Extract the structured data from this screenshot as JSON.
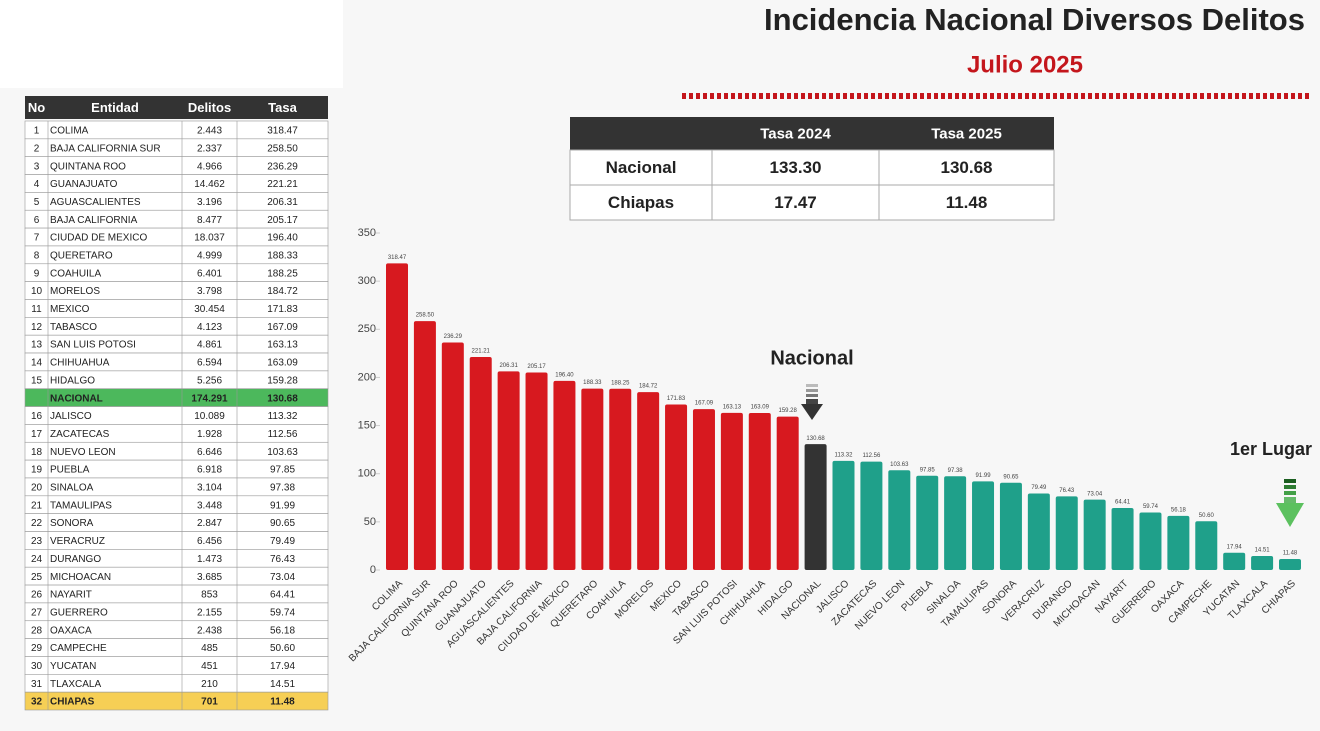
{
  "title": "Incidencia Nacional Diversos Delitos",
  "subtitle": "Julio 2025",
  "table": {
    "header": [
      "No",
      "Entidad",
      "Delitos",
      "Tasa"
    ],
    "rows": [
      {
        "no": "1",
        "entidad": "COLIMA",
        "delitos": "2.443",
        "tasa": "318.47"
      },
      {
        "no": "2",
        "entidad": "BAJA CALIFORNIA SUR",
        "delitos": "2.337",
        "tasa": "258.50"
      },
      {
        "no": "3",
        "entidad": "QUINTANA ROO",
        "delitos": "4.966",
        "tasa": "236.29"
      },
      {
        "no": "4",
        "entidad": "GUANAJUATO",
        "delitos": "14.462",
        "tasa": "221.21"
      },
      {
        "no": "5",
        "entidad": "AGUASCALIENTES",
        "delitos": "3.196",
        "tasa": "206.31"
      },
      {
        "no": "6",
        "entidad": "BAJA CALIFORNIA",
        "delitos": "8.477",
        "tasa": "205.17"
      },
      {
        "no": "7",
        "entidad": "CIUDAD DE MEXICO",
        "delitos": "18.037",
        "tasa": "196.40"
      },
      {
        "no": "8",
        "entidad": "QUERETARO",
        "delitos": "4.999",
        "tasa": "188.33"
      },
      {
        "no": "9",
        "entidad": "COAHUILA",
        "delitos": "6.401",
        "tasa": "188.25"
      },
      {
        "no": "10",
        "entidad": "MORELOS",
        "delitos": "3.798",
        "tasa": "184.72"
      },
      {
        "no": "11",
        "entidad": "MEXICO",
        "delitos": "30.454",
        "tasa": "171.83"
      },
      {
        "no": "12",
        "entidad": "TABASCO",
        "delitos": "4.123",
        "tasa": "167.09"
      },
      {
        "no": "13",
        "entidad": "SAN LUIS POTOSI",
        "delitos": "4.861",
        "tasa": "163.13"
      },
      {
        "no": "14",
        "entidad": "CHIHUAHUA",
        "delitos": "6.594",
        "tasa": "163.09"
      },
      {
        "no": "15",
        "entidad": "HIDALGO",
        "delitos": "5.256",
        "tasa": "159.28"
      },
      {
        "entidad": "NACIONAL",
        "delitos": "174.291",
        "tasa": "130.68",
        "fill": "#4cb85c"
      },
      {
        "no": "16",
        "entidad": "JALISCO",
        "delitos": "10.089",
        "tasa": "113.32"
      },
      {
        "no": "17",
        "entidad": "ZACATECAS",
        "delitos": "1.928",
        "tasa": "112.56"
      },
      {
        "no": "18",
        "entidad": "NUEVO LEON",
        "delitos": "6.646",
        "tasa": "103.63"
      },
      {
        "no": "19",
        "entidad": "PUEBLA",
        "delitos": "6.918",
        "tasa": "97.85"
      },
      {
        "no": "20",
        "entidad": "SINALOA",
        "delitos": "3.104",
        "tasa": "97.38"
      },
      {
        "no": "21",
        "entidad": "TAMAULIPAS",
        "delitos": "3.448",
        "tasa": "91.99"
      },
      {
        "no": "22",
        "entidad": "SONORA",
        "delitos": "2.847",
        "tasa": "90.65"
      },
      {
        "no": "23",
        "entidad": "VERACRUZ",
        "delitos": "6.456",
        "tasa": "79.49"
      },
      {
        "no": "24",
        "entidad": "DURANGO",
        "delitos": "1.473",
        "tasa": "76.43"
      },
      {
        "no": "25",
        "entidad": "MICHOACAN",
        "delitos": "3.685",
        "tasa": "73.04"
      },
      {
        "no": "26",
        "entidad": "NAYARIT",
        "delitos": "853",
        "tasa": "64.41"
      },
      {
        "no": "27",
        "entidad": "GUERRERO",
        "delitos": "2.155",
        "tasa": "59.74"
      },
      {
        "no": "28",
        "entidad": "OAXACA",
        "delitos": "2.438",
        "tasa": "56.18"
      },
      {
        "no": "29",
        "entidad": "CAMPECHE",
        "delitos": "485",
        "tasa": "50.60"
      },
      {
        "no": "30",
        "entidad": "YUCATAN",
        "delitos": "451",
        "tasa": "17.94"
      },
      {
        "no": "31",
        "entidad": "TLAXCALA",
        "delitos": "210",
        "tasa": "14.51"
      },
      {
        "no": "32",
        "entidad": "CHIAPAS",
        "delitos": "701",
        "tasa": "11.48",
        "fill": "#f6cf55"
      }
    ]
  },
  "summary": {
    "header": [
      "Tasa 2024",
      "Tasa 2025"
    ],
    "rows": [
      {
        "label": "Nacional",
        "values": [
          "133.30",
          "130.68"
        ]
      },
      {
        "label": "Chiapas",
        "values": [
          "17.47",
          "11.48"
        ]
      }
    ]
  },
  "chart_data": {
    "type": "bar",
    "categories": [
      "COLIMA",
      "BAJA CALIFORNIA SUR",
      "QUINTANA ROO",
      "GUANAJUATO",
      "AGUASCALIENTES",
      "BAJA CALIFORNIA",
      "CIUDAD DE MEXICO",
      "QUERETARO",
      "COAHUILA",
      "MORELOS",
      "MEXICO",
      "TABASCO",
      "SAN LUIS POTOSI",
      "CHIHUAHUA",
      "HIDALGO",
      "NACIONAL",
      "JALISCO",
      "ZACATECAS",
      "NUEVO LEON",
      "PUEBLA",
      "SINALOA",
      "TAMAULIPAS",
      "SONORA",
      "VERACRUZ",
      "DURANGO",
      "MICHOACAN",
      "NAYARIT",
      "GUERRERO",
      "OAXACA",
      "CAMPECHE",
      "YUCATAN",
      "TLAXCALA",
      "CHIAPAS"
    ],
    "values": [
      318.47,
      258.5,
      236.29,
      221.21,
      206.31,
      205.17,
      196.4,
      188.33,
      188.25,
      184.72,
      171.83,
      167.09,
      163.13,
      163.09,
      159.28,
      130.68,
      113.32,
      112.56,
      103.63,
      97.85,
      97.38,
      91.99,
      90.65,
      79.49,
      76.43,
      73.04,
      64.41,
      59.74,
      56.18,
      50.6,
      17.94,
      14.51,
      11.48
    ],
    "value_labels": [
      "318.47",
      "258.50",
      "236.29",
      "221.21",
      "206.31",
      "205.17",
      "196.40",
      "188.33",
      "188.25",
      "184.72",
      "171.83",
      "167.09",
      "163.13",
      "163.09",
      "159.28",
      "130.68",
      "113.32",
      "112.56",
      "103.63",
      "97.85",
      "97.38",
      "91.99",
      "90.65",
      "79.49",
      "76.43",
      "73.04",
      "64.41",
      "59.74",
      "56.18",
      "50.60",
      "17.94",
      "14.51",
      "11.48"
    ],
    "colors": [
      "#d7191f",
      "#d7191f",
      "#d7191f",
      "#d7191f",
      "#d7191f",
      "#d7191f",
      "#d7191f",
      "#d7191f",
      "#d7191f",
      "#d7191f",
      "#d7191f",
      "#d7191f",
      "#d7191f",
      "#d7191f",
      "#d7191f",
      "#333333",
      "#1fa08a",
      "#1fa08a",
      "#1fa08a",
      "#1fa08a",
      "#1fa08a",
      "#1fa08a",
      "#1fa08a",
      "#1fa08a",
      "#1fa08a",
      "#1fa08a",
      "#1fa08a",
      "#1fa08a",
      "#1fa08a",
      "#1fa08a",
      "#1fa08a",
      "#1fa08a",
      "#1fa08a"
    ],
    "ylim": [
      0,
      350
    ],
    "yticks": [
      0,
      50,
      100,
      150,
      200,
      250,
      300,
      350
    ],
    "annotations": [
      "Nacional",
      "1er Lugar"
    ]
  }
}
